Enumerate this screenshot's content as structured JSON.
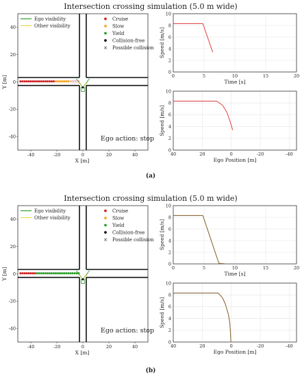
{
  "figure": {
    "panels": [
      {
        "caption": "(a)",
        "title": "Intersection crossing simulation (5.0 m wide)",
        "ego_action": "Ego action: stop"
      },
      {
        "caption": "(b)",
        "title": "Intersection crossing simulation (5.0 m wide)",
        "ego_action": "Ego action: stop"
      }
    ],
    "colors": {
      "ego_visibility": "#2e9e2e",
      "other_visibility": "#e8d84a",
      "cruise": "#cc2222",
      "slow": "#f5a623",
      "yield": "#2e9e2e",
      "collision_free": "#111111",
      "speed_line_a": "#e05050",
      "speed_line_b": "#8a6a3a",
      "grid": "#e6e6e6"
    }
  },
  "chart_data": [
    {
      "type": "scatter",
      "panel": "(a)",
      "title": "Intersection crossing simulation (5.0 m wide)",
      "xlabel": "X [m]",
      "ylabel": "Y [m]",
      "xlim": [
        -50,
        50
      ],
      "ylim": [
        -50,
        50
      ],
      "xticks": [
        -40,
        -20,
        0,
        20,
        40
      ],
      "yticks": [
        -40,
        -20,
        0,
        20,
        40
      ],
      "legend_left": [
        "Ego visibility",
        "Other visibility"
      ],
      "legend_right": [
        "Cruise",
        "Slow",
        "Yield",
        "Collision-free",
        "Possible collision"
      ],
      "other_vehicle_trajectory": {
        "x_start": -48,
        "x_end": -2,
        "y": 0.4,
        "cruise_until_x": -22,
        "slow_until_x": -2
      },
      "ego_vehicle_x": 0,
      "ego_vehicle_y_range": [
        -7,
        -4
      ],
      "annotation": "Ego action: stop"
    },
    {
      "type": "line",
      "panel": "(a)",
      "xlabel": "Time [s]",
      "ylabel": "Speed [m/s]",
      "xlim": [
        0,
        20
      ],
      "ylim": [
        0,
        10
      ],
      "xticks": [
        0,
        5,
        10,
        15,
        20
      ],
      "yticks": [
        0,
        2,
        4,
        6,
        8,
        10
      ],
      "series": [
        {
          "x": [
            0,
            4.8,
            6.4
          ],
          "y": [
            8.3,
            8.3,
            3.4
          ]
        }
      ]
    },
    {
      "type": "line",
      "panel": "(a)",
      "xlabel": "Ego Position [m]",
      "ylabel": "Speed [m/s]",
      "xlim": [
        40,
        -45
      ],
      "ylim": [
        0,
        10
      ],
      "xticks": [
        40,
        20,
        0,
        -20,
        -40
      ],
      "yticks": [
        0,
        2,
        4,
        6,
        8,
        10
      ],
      "series": [
        {
          "x": [
            40,
            10,
            6,
            3,
            1,
            -1
          ],
          "y": [
            8.3,
            8.3,
            7.6,
            6.4,
            5.0,
            3.4
          ]
        }
      ]
    },
    {
      "type": "scatter",
      "panel": "(b)",
      "title": "Intersection crossing simulation (5.0 m wide)",
      "xlabel": "X [m]",
      "ylabel": "Y [m]",
      "xlim": [
        -50,
        50
      ],
      "ylim": [
        -50,
        50
      ],
      "xticks": [
        -40,
        -20,
        0,
        20,
        40
      ],
      "yticks": [
        -40,
        -20,
        0,
        20,
        40
      ],
      "legend_left": [
        "Ego visibility",
        "Other visibility"
      ],
      "legend_right": [
        "Cruise",
        "Slow",
        "Yield",
        "Collision-free",
        "Possible collision"
      ],
      "other_vehicle_trajectory": {
        "x_start": -48,
        "x_end": -2,
        "y": 0.4,
        "cruise_until_x": -36,
        "slow_until_x": -18
      },
      "ego_vehicle_x": 0,
      "ego_vehicle_y_range": [
        -7,
        -4
      ],
      "annotation": "Ego action: stop"
    },
    {
      "type": "line",
      "panel": "(b)",
      "xlabel": "Time [s]",
      "ylabel": "Speed [m/s]",
      "xlim": [
        0,
        20
      ],
      "ylim": [
        0,
        10
      ],
      "xticks": [
        0,
        5,
        10,
        15,
        20
      ],
      "yticks": [
        0,
        2,
        4,
        6,
        8,
        10
      ],
      "series": [
        {
          "x": [
            0,
            4.8,
            7.4,
            8.6
          ],
          "y": [
            8.3,
            8.3,
            0.1,
            0
          ]
        }
      ]
    },
    {
      "type": "line",
      "panel": "(b)",
      "xlabel": "Ego Position [m]",
      "ylabel": "Speed [m/s]",
      "xlim": [
        40,
        -45
      ],
      "ylim": [
        0,
        10
      ],
      "xticks": [
        40,
        20,
        0,
        -20,
        -40
      ],
      "yticks": [
        0,
        2,
        4,
        6,
        8,
        10
      ],
      "series": [
        {
          "x": [
            40,
            9,
            6,
            4,
            2,
            1,
            0.5,
            0.3
          ],
          "y": [
            8.3,
            8.3,
            7.5,
            6.4,
            4.7,
            3.2,
            1.5,
            0
          ]
        }
      ]
    }
  ]
}
